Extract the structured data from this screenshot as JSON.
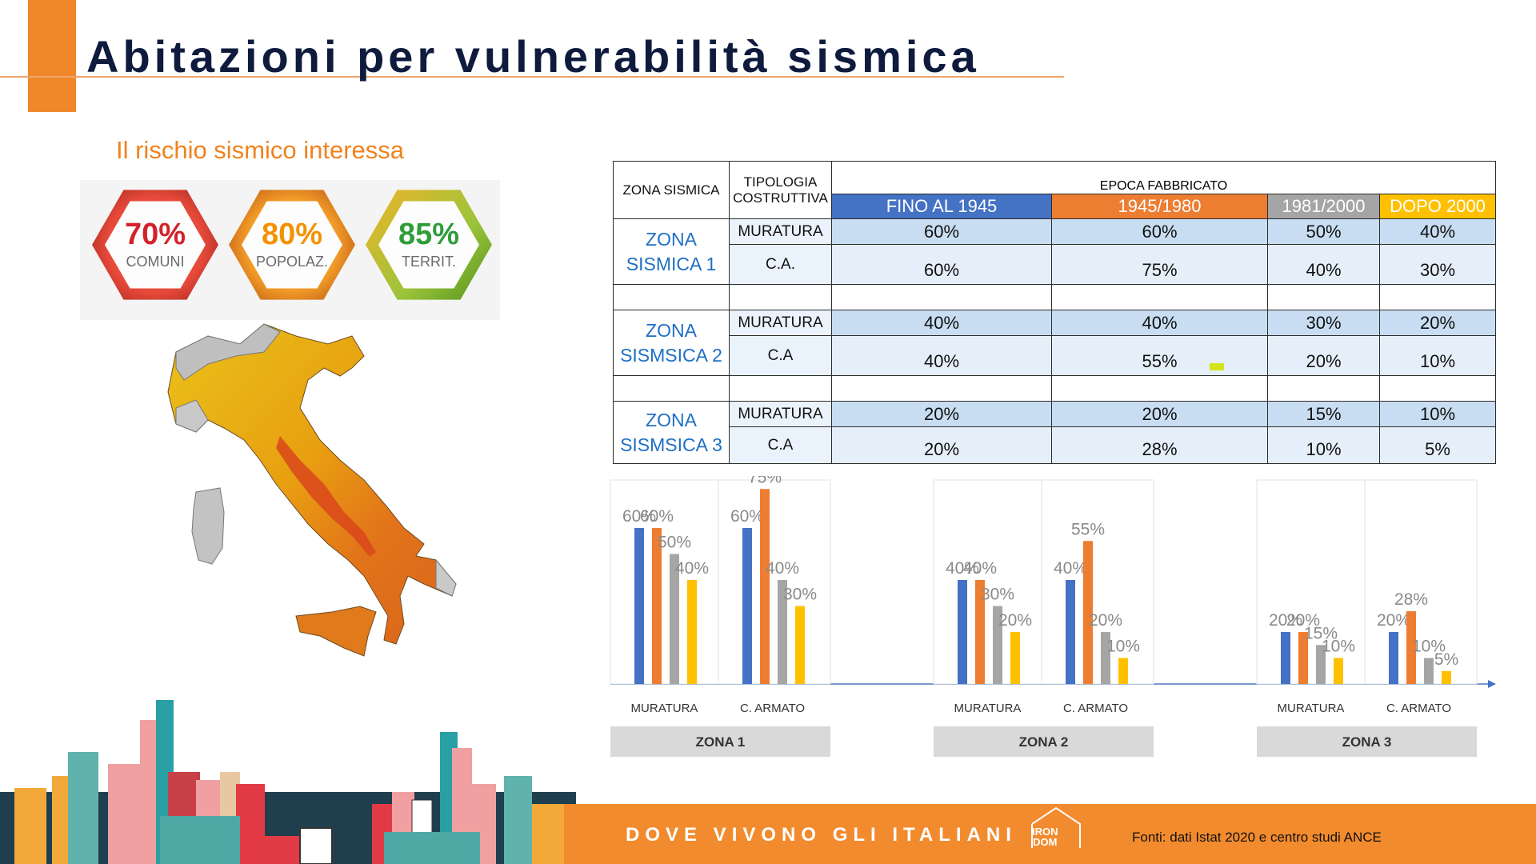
{
  "title": "Abitazioni per vulnerabilità sismica",
  "subtitle": "Il rischio sismico interessa",
  "stats": [
    {
      "value": "70%",
      "label": "COMUNI",
      "color": "#d2232a"
    },
    {
      "value": "80%",
      "label": "POPOLAZ.",
      "color": "#f39200"
    },
    {
      "value": "85%",
      "label": "TERRIT.",
      "color": "#3aa935"
    }
  ],
  "table": {
    "headers": {
      "zona": "ZONA SISMICA",
      "tipologia_line1": "TIPOLOGIA",
      "tipologia_line2": "COSTRUTTIVA",
      "epoca": "EPOCA FABBRICATO",
      "eras": [
        "FINO AL 1945",
        "1945/1980",
        "1981/2000",
        "DOPO 2000"
      ],
      "era_colors": [
        "#4472c4",
        "#ed7d31",
        "#a5a5a5",
        "#ffc000"
      ]
    },
    "zones": [
      {
        "line1": "ZONA",
        "line2": "SISMICA 1",
        "rows": [
          {
            "tipo": "MURATURA",
            "values": [
              "60%",
              "60%",
              "50%",
              "40%"
            ]
          },
          {
            "tipo": "C.A.",
            "values": [
              "60%",
              "75%",
              "40%",
              "30%"
            ]
          }
        ]
      },
      {
        "line1": "ZONA",
        "line2": "SISMSICA 2",
        "rows": [
          {
            "tipo": "MURATURA",
            "values": [
              "40%",
              "40%",
              "30%",
              "20%"
            ]
          },
          {
            "tipo": "C.A",
            "values": [
              "40%",
              "55%",
              "20%",
              "10%"
            ]
          }
        ]
      },
      {
        "line1": "ZONA",
        "line2": "SISMSICA 3",
        "rows": [
          {
            "tipo": "MURATURA",
            "values": [
              "20%",
              "20%",
              "15%",
              "10%"
            ]
          },
          {
            "tipo": "C.A",
            "values": [
              "20%",
              "28%",
              "10%",
              "5%"
            ]
          }
        ]
      }
    ]
  },
  "chart_data": {
    "type": "bar",
    "series_colors": [
      "#4472c4",
      "#ed7d31",
      "#a5a5a5",
      "#ffc000"
    ],
    "ylim": [
      0,
      80
    ],
    "groups": [
      {
        "zone": "ZONA 1",
        "categories": [
          {
            "name": "MURATURA",
            "values": [
              60,
              60,
              50,
              40
            ]
          },
          {
            "name": "C. ARMATO",
            "values": [
              60,
              75,
              40,
              30
            ]
          }
        ]
      },
      {
        "zone": "ZONA 2",
        "categories": [
          {
            "name": "MURATURA",
            "values": [
              40,
              40,
              30,
              20
            ]
          },
          {
            "name": "C. ARMATO",
            "values": [
              40,
              55,
              20,
              10
            ]
          }
        ]
      },
      {
        "zone": "ZONA 3",
        "categories": [
          {
            "name": "MURATURA",
            "values": [
              20,
              20,
              15,
              10
            ]
          },
          {
            "name": "C. ARMATO",
            "values": [
              20,
              28,
              10,
              5
            ]
          }
        ]
      }
    ]
  },
  "footer": {
    "motto": "DOVE VIVONO GLI ITALIANI",
    "logo_line1": "IRON",
    "logo_line2": "DOM",
    "source": "Fonti: dati Istat 2020 e centro studi ANCE"
  }
}
